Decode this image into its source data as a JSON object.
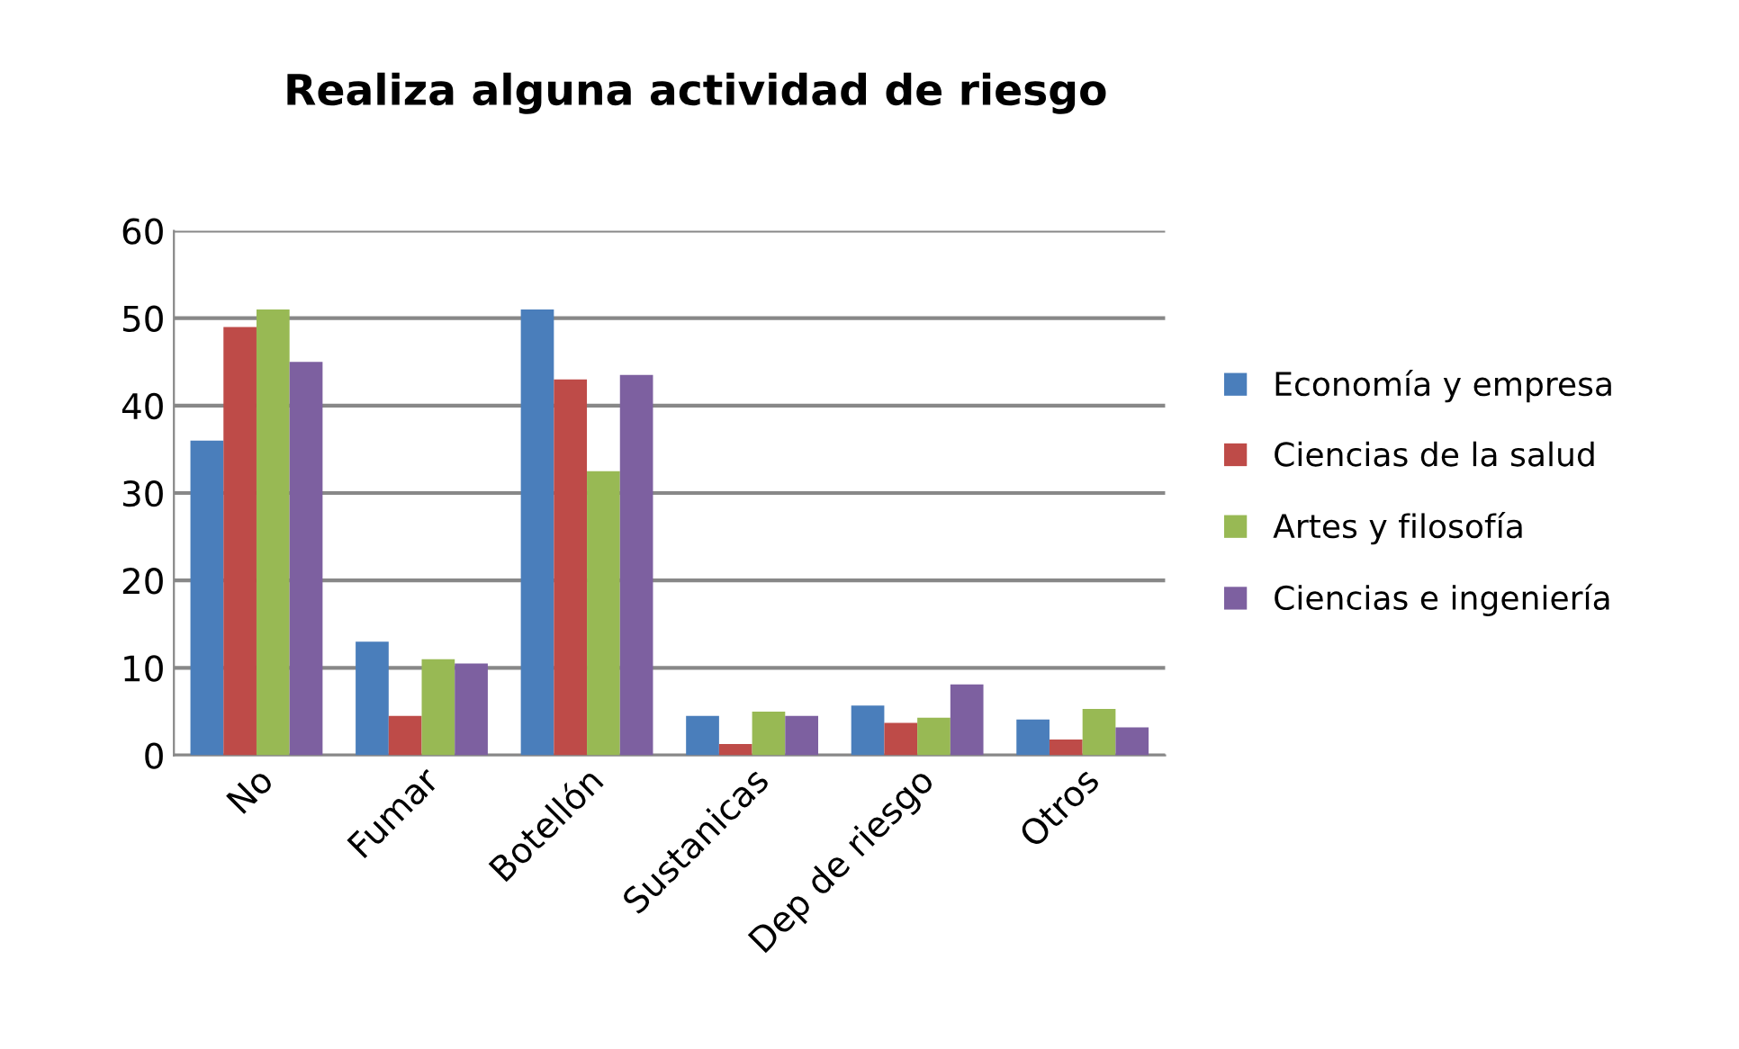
{
  "chart_data": {
    "type": "bar",
    "title": "Realiza alguna actividad de riesgo",
    "categories": [
      "No",
      "Fumar",
      "Botellón",
      "Sustanicas",
      "Dep de riesgo",
      "Otros"
    ],
    "series": [
      {
        "name": "Economía y empresa",
        "color": "#4a7ebb",
        "values": [
          36,
          13,
          51,
          4.5,
          5.7,
          4.1
        ]
      },
      {
        "name": "Ciencias de la salud",
        "color": "#be4b48",
        "values": [
          49,
          4.5,
          43,
          1.3,
          3.7,
          1.8
        ]
      },
      {
        "name": "Artes y filosofía",
        "color": "#98b954",
        "values": [
          51,
          11,
          32.5,
          5,
          4.3,
          5.3
        ]
      },
      {
        "name": "Ciencias e ingeniería",
        "color": "#7d60a0",
        "values": [
          45,
          10.5,
          43.5,
          4.5,
          8.1,
          3.2
        ]
      }
    ],
    "ylim": [
      0,
      60
    ],
    "yticks": [
      0,
      10,
      20,
      30,
      40,
      50,
      60
    ],
    "grid": "y",
    "legend": "right"
  }
}
